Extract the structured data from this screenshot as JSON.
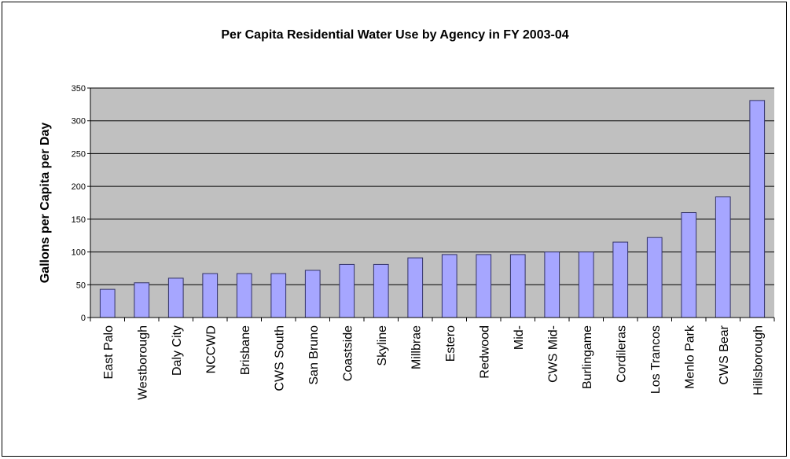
{
  "chart_data": {
    "type": "bar",
    "title": "Per Capita Residential Water Use by Agency in FY 2003-04",
    "xlabel": "",
    "ylabel": "Gallons per Capita per Day",
    "ylim": [
      0,
      350
    ],
    "yticks": [
      0,
      50,
      100,
      150,
      200,
      250,
      300,
      350
    ],
    "grid": true,
    "categories": [
      "East Palo",
      "Westborough",
      "Daly City",
      "NCCWD",
      "Brisbane",
      "CWS South",
      "San Bruno",
      "Coastside",
      "Skyline",
      "Millbrae",
      "Estero",
      "Redwood",
      "Mid-",
      "CWS Mid-",
      "Burlingame",
      "Cordileras",
      "Los Trancos",
      "Menlo Park",
      "CWS Bear",
      "Hillsborough"
    ],
    "values": [
      43,
      53,
      60,
      67,
      67,
      67,
      72,
      81,
      81,
      91,
      96,
      96,
      96,
      100,
      100,
      115,
      122,
      160,
      184,
      331
    ],
    "colors": {
      "bar_fill": "#a6a6ff",
      "bar_stroke": "#333366",
      "plot_bg": "#c0c0c0",
      "grid": "#000000"
    }
  }
}
